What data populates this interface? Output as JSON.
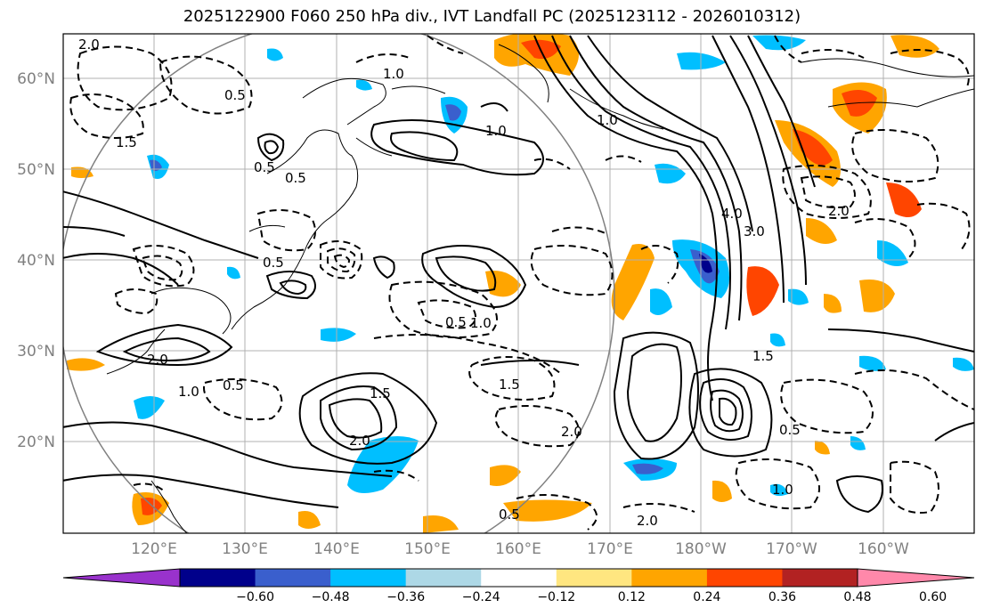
{
  "title": "2025122900 F060 250 hPa div., IVT Landfall PC (2025123112 - 2026010312)",
  "map": {
    "lon_range": [
      110,
      210
    ],
    "lat_range": [
      10,
      65
    ],
    "lat_ticks": [
      "60°N",
      "50°N",
      "40°N",
      "30°N",
      "20°N"
    ],
    "lon_ticks": [
      "120°E",
      "130°E",
      "140°E",
      "150°E",
      "160°E",
      "170°E",
      "180°W",
      "170°W",
      "160°W"
    ],
    "contour_labels": [
      "2.0",
      "0.5",
      "1.0",
      "1.5",
      "0.5",
      "0.5",
      "1.0",
      "4.0",
      "3.0",
      "2.0",
      "1.0",
      "0.5",
      "2.0",
      "0.5",
      "1.5",
      "1.0",
      "2.0",
      "2.0",
      "1.5",
      "0.5",
      "1.0",
      "0.5",
      "2.0",
      "0.5",
      "1.0",
      "1.5"
    ]
  },
  "colorbar": {
    "colors": [
      "#9932cc",
      "#00008b",
      "#3a5fcd",
      "#00bfff",
      "#add8e6",
      "#ffffff",
      "#ffe680",
      "#ffa500",
      "#ff4500",
      "#b22222",
      "#ff88aa"
    ],
    "labels": [
      "−0.60",
      "−0.48",
      "−0.36",
      "−0.24",
      "−0.12",
      "0.12",
      "0.24",
      "0.36",
      "0.48",
      "0.60"
    ]
  }
}
